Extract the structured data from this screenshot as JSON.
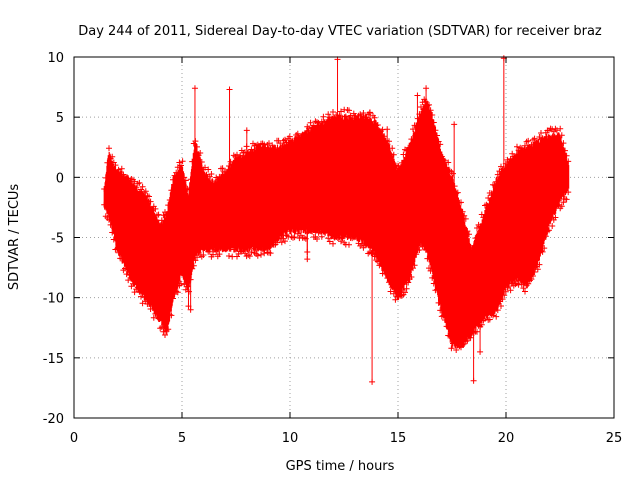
{
  "chart_data": {
    "type": "scatter",
    "title": "Day 244 of 2011, Sidereal Day-to-day VTEC variation (SDTVAR) for receiver braz",
    "xlabel": "GPS time / hours",
    "ylabel": "SDTVAR / TECUs",
    "xlim": [
      0,
      25
    ],
    "ylim": [
      -20,
      10
    ],
    "x_ticks": [
      0,
      5,
      10,
      15,
      20,
      25
    ],
    "y_ticks": [
      -20,
      -15,
      -10,
      -5,
      0,
      5,
      10
    ],
    "x_tick_labels": [
      "0",
      "5",
      "10",
      "15",
      "20",
      "25"
    ],
    "y_tick_labels": [
      "-20",
      "-15",
      "-10",
      "-5",
      "0",
      "5",
      "10"
    ],
    "grid": true,
    "marker": "+",
    "color": "#ff0000",
    "series": [
      {
        "name": "SDTVAR",
        "envelope": {
          "x": [
            1.4,
            1.6,
            2.0,
            2.5,
            3.0,
            3.5,
            4.0,
            4.3,
            4.6,
            5.0,
            5.3,
            5.6,
            6.0,
            6.5,
            7.0,
            7.5,
            8.0,
            8.5,
            9.0,
            9.5,
            10.0,
            10.5,
            11.0,
            11.5,
            12.0,
            12.5,
            13.0,
            13.5,
            14.0,
            14.5,
            15.0,
            15.5,
            16.0,
            16.3,
            16.6,
            17.0,
            17.5,
            18.0,
            18.4,
            18.8,
            19.2,
            19.6,
            20.0,
            20.5,
            21.0,
            21.5,
            22.0,
            22.5,
            22.9
          ],
          "upper": [
            -1.0,
            2.0,
            0.5,
            0.0,
            -1.0,
            -2.0,
            -4.0,
            -3.0,
            0.0,
            1.0,
            -1.5,
            3.0,
            0.5,
            -0.5,
            0.5,
            1.5,
            2.0,
            2.5,
            2.5,
            2.5,
            3.0,
            3.5,
            4.0,
            4.5,
            5.0,
            5.0,
            5.0,
            5.0,
            4.5,
            3.0,
            0.5,
            2.5,
            5.0,
            6.5,
            5.0,
            2.0,
            0.0,
            -3.0,
            -6.0,
            -4.0,
            -2.0,
            0.0,
            1.0,
            2.0,
            2.5,
            3.0,
            3.5,
            3.5,
            1.0
          ],
          "lower": [
            -2.5,
            -3.0,
            -6.0,
            -8.0,
            -9.5,
            -10.5,
            -12.0,
            -13.0,
            -10.0,
            -8.0,
            -9.5,
            -6.5,
            -6.0,
            -6.0,
            -6.0,
            -6.0,
            -6.0,
            -6.0,
            -6.0,
            -5.0,
            -4.5,
            -4.5,
            -4.5,
            -4.5,
            -5.0,
            -5.0,
            -5.0,
            -5.5,
            -6.5,
            -8.5,
            -10.0,
            -8.5,
            -5.5,
            -6.0,
            -8.0,
            -11.0,
            -14.0,
            -14.0,
            -13.0,
            -12.0,
            -11.5,
            -11.0,
            -9.0,
            -8.5,
            -9.0,
            -7.0,
            -4.0,
            -2.0,
            -1.0
          ]
        },
        "outliers": [
          {
            "x": 12.2,
            "y": 9.8
          },
          {
            "x": 19.9,
            "y": 9.9
          },
          {
            "x": 13.8,
            "y": -17.0
          },
          {
            "x": 17.6,
            "y": 4.4
          },
          {
            "x": 8.0,
            "y": 3.9
          },
          {
            "x": 7.2,
            "y": 7.3
          },
          {
            "x": 13.7,
            "y": 5.4
          },
          {
            "x": 14.5,
            "y": 4.0
          },
          {
            "x": 10.8,
            "y": 4.2
          },
          {
            "x": 18.5,
            "y": -16.9
          },
          {
            "x": 10.8,
            "y": -6.8
          },
          {
            "x": 10.8,
            "y": -6.2
          },
          {
            "x": 5.3,
            "y": -10.7
          },
          {
            "x": 5.4,
            "y": -11.0
          },
          {
            "x": 11.5,
            "y": 3.8
          },
          {
            "x": 16.3,
            "y": 7.4
          },
          {
            "x": 5.6,
            "y": 7.4
          },
          {
            "x": 15.9,
            "y": 6.8
          },
          {
            "x": 18.8,
            "y": -14.5
          }
        ]
      }
    ]
  }
}
